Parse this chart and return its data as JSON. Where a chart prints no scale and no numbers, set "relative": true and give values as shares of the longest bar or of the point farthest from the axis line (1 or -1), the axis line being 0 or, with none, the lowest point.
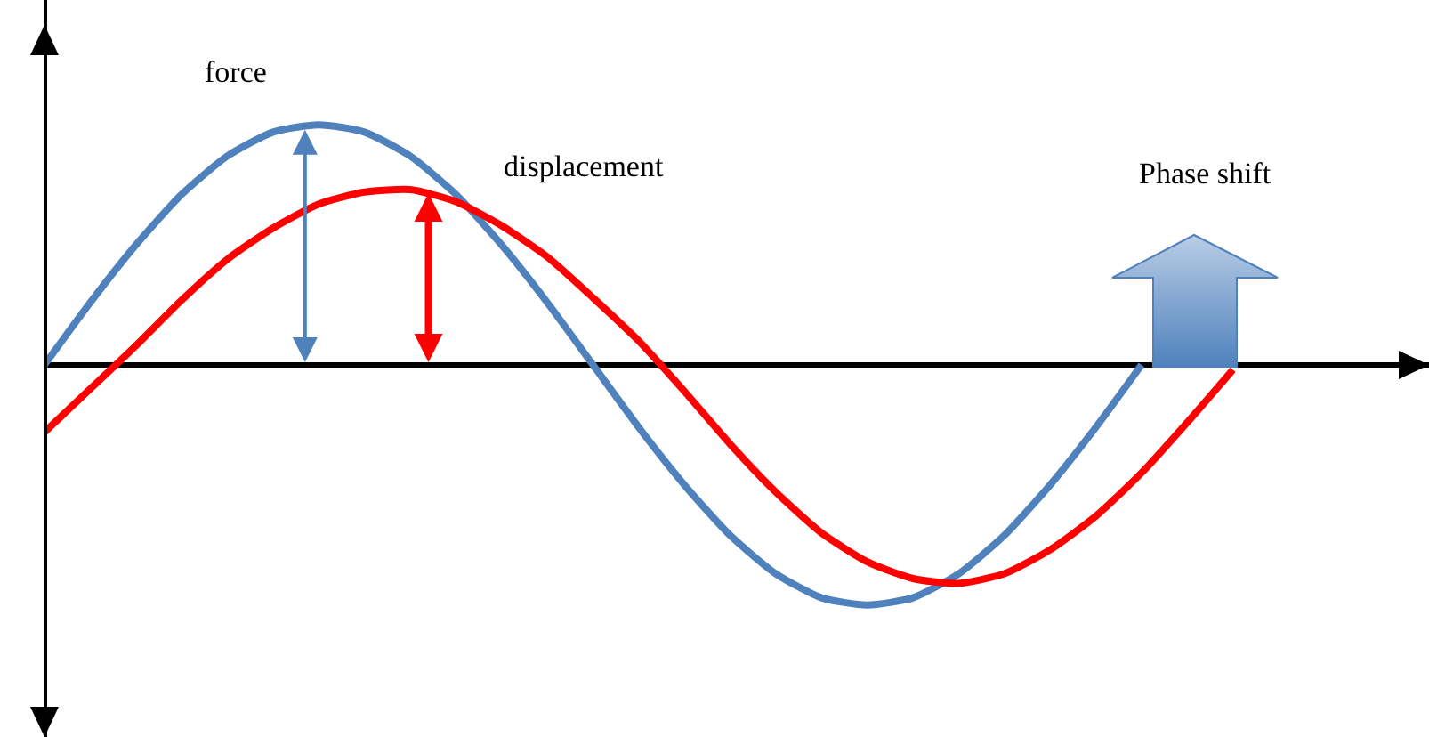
{
  "chart_data": {
    "type": "line",
    "relative": true,
    "categories": [
      null,
      null,
      null,
      null,
      null,
      null,
      null,
      null,
      null,
      null,
      null,
      null,
      null,
      null,
      null,
      null,
      null,
      null,
      null,
      null,
      null,
      null,
      null,
      null,
      null,
      null,
      null
    ],
    "series": [
      {
        "name": "force",
        "color": "#4f81bd",
        "values": [
          0,
          0.26,
          0.5,
          0.71,
          0.87,
          0.97,
          1,
          0.97,
          0.87,
          0.71,
          0.5,
          0.26,
          0,
          -0.26,
          -0.5,
          -0.71,
          -0.87,
          -0.97,
          -1,
          -0.97,
          -0.87,
          -0.71,
          -0.5,
          -0.26,
          0,
          null,
          null
        ]
      },
      {
        "name": "displacement",
        "color": "#ff0000",
        "values": [
          -0.28,
          -0.1,
          0.08,
          0.27,
          0.44,
          0.57,
          0.67,
          0.72,
          0.73,
          0.68,
          0.58,
          0.45,
          0.28,
          0.1,
          -0.11,
          -0.33,
          -0.53,
          -0.7,
          -0.82,
          -0.89,
          -0.91,
          -0.87,
          -0.77,
          -0.63,
          -0.45,
          -0.24,
          -0.02
        ]
      }
    ],
    "annotations": [
      "Phase shift"
    ]
  }
}
